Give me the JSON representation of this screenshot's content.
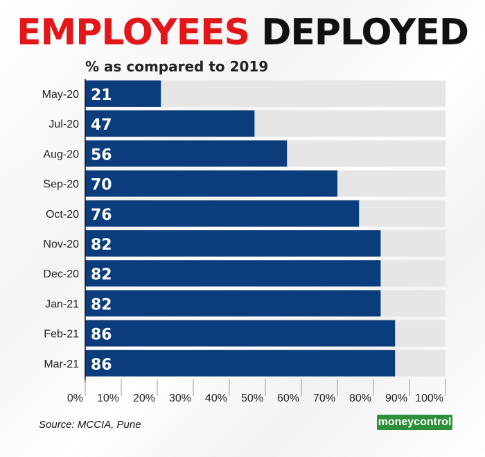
{
  "header": {
    "title_part1": "EMPLOYEES",
    "title_part2": "DEPLOYED",
    "subtitle": "% as compared to 2019"
  },
  "footer": {
    "source": "Source: MCCIA, Pune",
    "logo_part1": "money",
    "logo_part2": "control"
  },
  "colors": {
    "title_accent": "#e3161a",
    "bar": "#0b3d7c",
    "track": "#e6e6e6",
    "logo": "#2d8f3a"
  },
  "chart_data": {
    "type": "bar",
    "orientation": "horizontal",
    "title": "EMPLOYEES DEPLOYED",
    "subtitle": "% as compared to 2019",
    "categories": [
      "May-20",
      "Jul-20",
      "Aug-20",
      "Sep-20",
      "Oct-20",
      "Nov-20",
      "Dec-20",
      "Jan-21",
      "Feb-21",
      "Mar-21"
    ],
    "values": [
      21,
      47,
      56,
      70,
      76,
      82,
      82,
      82,
      86,
      86
    ],
    "value_labels": [
      "21",
      "47",
      "56",
      "70",
      "76",
      "82",
      "82",
      "82",
      "86",
      "86"
    ],
    "xlim": [
      0,
      100
    ],
    "xticks": [
      "0%",
      "10%",
      "20%",
      "30%",
      "40%",
      "50%",
      "60%",
      "70%",
      "80%",
      "90%",
      "100%"
    ],
    "grid": true,
    "legend": "none",
    "background_track": true
  }
}
